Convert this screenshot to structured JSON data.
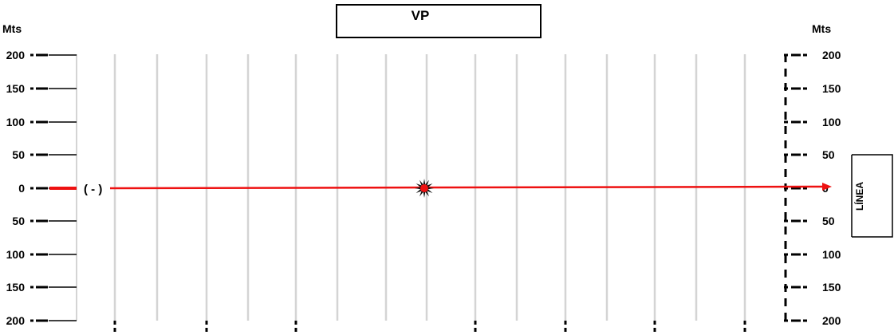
{
  "title": "VP",
  "axis_unit_left": "Mts",
  "axis_unit_right": "Mts",
  "left_ticks": [
    "200",
    "150",
    "100",
    "50",
    "0",
    "50",
    "100",
    "150",
    "200"
  ],
  "right_ticks": [
    "200",
    "150",
    "100",
    "50",
    "0",
    "50",
    "100",
    "150",
    "200"
  ],
  "side_label": "LÍNEA",
  "negative_side_marker": "( - )",
  "colors": {
    "line": "#ee1111",
    "grid": "#d4d4d4",
    "ticks": "#000000",
    "burst": "#111111"
  },
  "icons": [
    "starburst-icon",
    "arrow-head-icon"
  ]
}
